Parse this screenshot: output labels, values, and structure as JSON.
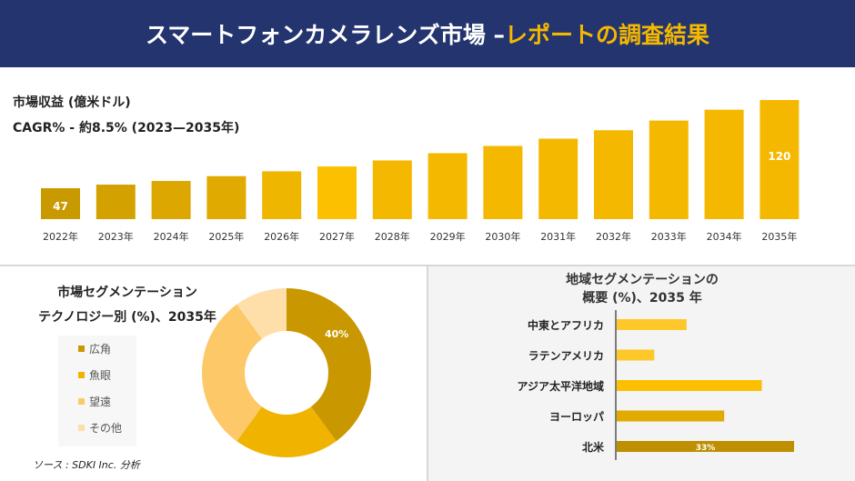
{
  "header": {
    "title_main": "スマートフォンカメラレンズ市場 –",
    "title_accent": "レポートの調査結果"
  },
  "revenue": {
    "label": "市場収益 (億米ドル)",
    "cagr": "CAGR% - 約8.5% (2023—2035年)"
  },
  "chart_data": [
    {
      "type": "bar",
      "categories": [
        "2022年",
        "2023年",
        "2024年",
        "2025年",
        "2026年",
        "2027年",
        "2028年",
        "2029年",
        "2030年",
        "2031年",
        "2032年",
        "2033年",
        "2034年",
        "2035年"
      ],
      "values": [
        47,
        50,
        53,
        57,
        61,
        65,
        70,
        76,
        82,
        88,
        95,
        103,
        112,
        120
      ],
      "data_labels": {
        "2022年": "47",
        "2035年": "120"
      },
      "colors": [
        "#c99a00",
        "#d4a200",
        "#dba700",
        "#e0aa00",
        "#efb600",
        "#fdc000",
        "#f5b800",
        "#f5b800",
        "#f5b800",
        "#f5b800",
        "#f5b800",
        "#f5b800",
        "#f5b800",
        "#f5b800"
      ]
    },
    {
      "type": "pie",
      "title": "市場セグメンテーション",
      "subtitle": "テクノロジー別 (%)、2035年",
      "labels": [
        "広角",
        "魚眼",
        "望遠",
        "その他"
      ],
      "values": [
        40,
        20,
        30,
        10
      ],
      "colors": [
        "#c99700",
        "#f0b400",
        "#fcc868",
        "#fedfaa"
      ],
      "data_labels": [
        "40%",
        "",
        "",
        ""
      ],
      "donut": true,
      "legend": "left"
    },
    {
      "type": "bar",
      "orientation": "horizontal",
      "title": "地域セグメンテーションの",
      "subtitle": "概要 (%)、2035 年",
      "categories": [
        "中東とアフリカ",
        "ラテンアメリカ",
        "アジア太平洋地域",
        "ヨーロッパ",
        "北米"
      ],
      "values": [
        13,
        7,
        27,
        20,
        33
      ],
      "data_labels": [
        "",
        "",
        "",
        "",
        "33%"
      ],
      "colors": [
        "#fec82a",
        "#fec82a",
        "#fdc000",
        "#e1aa00",
        "#be8f00"
      ]
    }
  ],
  "source": "ソース : SDKI Inc. 分析"
}
